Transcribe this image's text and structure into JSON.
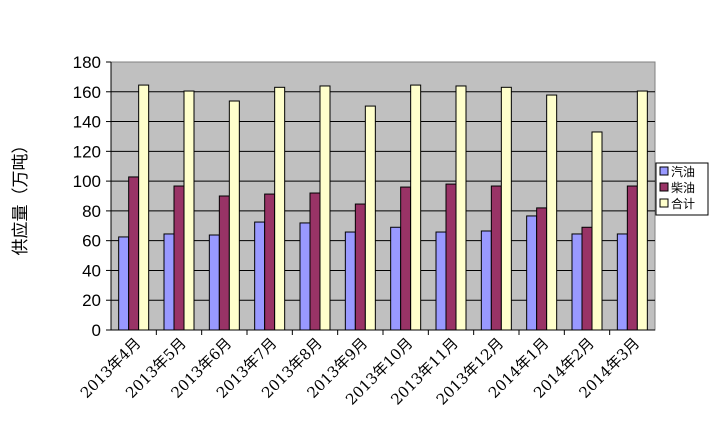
{
  "chart_data": {
    "type": "bar",
    "title": "",
    "xlabel": "",
    "ylabel": "供应量（万吨）",
    "ylim": [
      0,
      180
    ],
    "yticks": [
      0,
      20,
      40,
      60,
      80,
      100,
      120,
      140,
      160,
      180
    ],
    "grid": true,
    "legend": "right",
    "categories": [
      "2013年4月",
      "2013年5月",
      "2013年6月",
      "2013年7月",
      "2013年8月",
      "2013年9月",
      "2013年10月",
      "2013年11月",
      "2013年12月",
      "2014年1月",
      "2014年2月",
      "2014年3月"
    ],
    "series": [
      {
        "name": "汽油",
        "color": "#9999ff",
        "values": [
          62.5,
          64.5,
          63.8,
          72.5,
          71.9,
          65.8,
          69,
          65.8,
          66.5,
          76.6,
          64.5,
          64.5
        ]
      },
      {
        "name": "柴油",
        "color": "#993366",
        "values": [
          102.8,
          96.7,
          90,
          91.3,
          92,
          84.6,
          96,
          98,
          96.7,
          82,
          69,
          96.7
        ]
      },
      {
        "name": "合计",
        "color": "#ffffcc",
        "values": [
          164.5,
          160.5,
          153.8,
          163,
          163.9,
          150.4,
          164.5,
          163.9,
          163,
          157.8,
          133,
          160.5
        ]
      }
    ],
    "plot_background": "#c0c0c0"
  }
}
